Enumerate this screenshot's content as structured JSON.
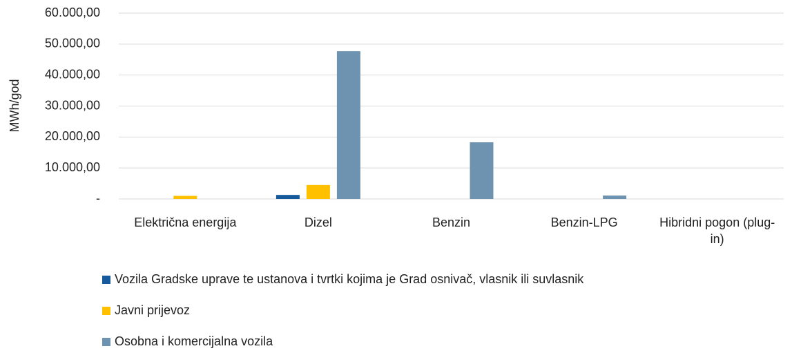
{
  "chart_data": {
    "type": "bar",
    "y_label": "MWh/god",
    "categories": [
      "Električna energija",
      "Dizel",
      "Benzin",
      "Benzin-LPG",
      "Hibridni pogon (plug-in)"
    ],
    "series": [
      {
        "name": "Vozila Gradske uprave te ustanova i tvrtki kojima je Grad osnivač, vlasnik ili suvlasnik",
        "color": "#145a9c",
        "values": [
          0,
          1300,
          0,
          0,
          0
        ]
      },
      {
        "name": "Javni prijevoz",
        "color": "#ffc000",
        "values": [
          1000,
          4500,
          0,
          0,
          0
        ]
      },
      {
        "name": "Osobna i komercijalna vozila",
        "color": "#6e93b0",
        "values": [
          0,
          47700,
          18300,
          1100,
          0
        ]
      }
    ],
    "ylim": [
      0,
      60000
    ],
    "yticks": [
      {
        "value": 0,
        "label": "-"
      },
      {
        "value": 10000,
        "label": "10.000,00"
      },
      {
        "value": 20000,
        "label": "20.000,00"
      },
      {
        "value": 30000,
        "label": "30.000,00"
      },
      {
        "value": 40000,
        "label": "40.000,00"
      },
      {
        "value": 50000,
        "label": "50.000,00"
      },
      {
        "value": 60000,
        "label": "60.000,00"
      }
    ],
    "grid": true,
    "legend": "bottom"
  }
}
